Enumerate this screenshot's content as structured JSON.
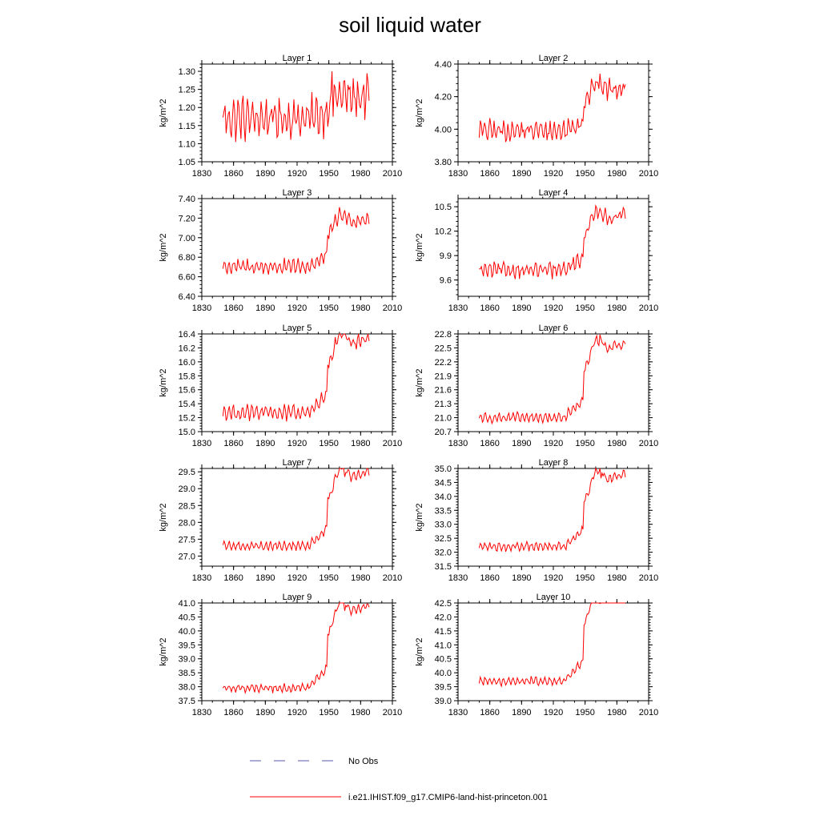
{
  "figure": {
    "title": "soil liquid water",
    "legend": [
      {
        "label": "No Obs",
        "color": "#5a5aa8",
        "style": "dashed"
      },
      {
        "label": "i.e21.IHIST.f09_g17.CMIP6-land-hist-princeton.001",
        "color": "#ff0000",
        "style": "solid"
      }
    ]
  },
  "chart_data": [
    {
      "type": "line",
      "title": "Layer 1",
      "ylabel": "kg/m^2",
      "xlim": [
        1830,
        2010
      ],
      "ylim": [
        1.05,
        1.32
      ],
      "xticks": [
        "1830",
        "1860",
        "1890",
        "1920",
        "1950",
        "1980",
        "2010"
      ],
      "yticks": [
        "1.05",
        "1.10",
        "1.15",
        "1.20",
        "1.25",
        "1.30"
      ],
      "ytick_values": [
        1.05,
        1.1,
        1.15,
        1.2,
        1.25,
        1.3
      ],
      "x_start": 1850,
      "x_end": 1988,
      "baseline": 1.17,
      "shift": 0.04,
      "amplitude": 0.05,
      "noise": 0.03,
      "highlight": [
        1953,
        1.3
      ],
      "series": [
        {
          "name": "i.e21.IHIST.f09_g17.CMIP6-land-hist-princeton.001",
          "color": "#ff0000"
        }
      ]
    },
    {
      "type": "line",
      "title": "Layer 2",
      "ylabel": "kg/m^2",
      "xlim": [
        1830,
        2010
      ],
      "ylim": [
        3.8,
        4.4
      ],
      "xticks": [
        "1830",
        "1860",
        "1890",
        "1920",
        "1950",
        "1980",
        "2010"
      ],
      "yticks": [
        "3.80",
        "4.00",
        "4.20",
        "4.40"
      ],
      "ytick_values": [
        3.8,
        4.0,
        4.2,
        4.4
      ],
      "x_start": 1850,
      "x_end": 1988,
      "baseline": 3.99,
      "shift": 0.18,
      "amplitude": 0.05,
      "noise": 0.04,
      "highlight": [
        1956,
        4.31
      ],
      "series": [
        {
          "name": "i.e21.IHIST.f09_g17.CMIP6-land-hist-princeton.001",
          "color": "#ff0000"
        }
      ]
    },
    {
      "type": "line",
      "title": "Layer 3",
      "ylabel": "kg/m^2",
      "xlim": [
        1830,
        2010
      ],
      "ylim": [
        6.4,
        7.4
      ],
      "xticks": [
        "1830",
        "1860",
        "1890",
        "1920",
        "1950",
        "1980",
        "2010"
      ],
      "yticks": [
        "6.40",
        "6.60",
        "6.80",
        "7.00",
        "7.20",
        "7.40"
      ],
      "ytick_values": [
        6.4,
        6.6,
        6.8,
        7.0,
        7.2,
        7.4
      ],
      "x_start": 1850,
      "x_end": 1988,
      "baseline": 6.7,
      "shift": 0.33,
      "amplitude": 0.07,
      "noise": 0.04,
      "highlight": [
        1956,
        7.24
      ],
      "series": [
        {
          "name": "i.e21.IHIST.f09_g17.CMIP6-land-hist-princeton.001",
          "color": "#ff0000"
        }
      ]
    },
    {
      "type": "line",
      "title": "Layer 4",
      "ylabel": "kg/m^2",
      "xlim": [
        1830,
        2010
      ],
      "ylim": [
        9.4,
        10.6
      ],
      "xticks": [
        "1830",
        "1860",
        "1890",
        "1920",
        "1950",
        "1980",
        "2010"
      ],
      "yticks": [
        "9.6",
        "9.9",
        "10.2",
        "10.5"
      ],
      "ytick_values": [
        9.6,
        9.9,
        10.2,
        10.5
      ],
      "x_start": 1850,
      "x_end": 1988,
      "baseline": 9.72,
      "shift": 0.45,
      "amplitude": 0.08,
      "noise": 0.05,
      "highlight": [
        1963,
        10.42
      ],
      "series": [
        {
          "name": "i.e21.IHIST.f09_g17.CMIP6-land-hist-princeton.001",
          "color": "#ff0000"
        }
      ]
    },
    {
      "type": "line",
      "title": "Layer 5",
      "ylabel": "kg/m^2",
      "xlim": [
        1830,
        2010
      ],
      "ylim": [
        15.0,
        16.4
      ],
      "xticks": [
        "1830",
        "1860",
        "1890",
        "1920",
        "1950",
        "1980",
        "2010"
      ],
      "yticks": [
        "15.0",
        "15.2",
        "15.4",
        "15.6",
        "15.8",
        "16.0",
        "16.2",
        "16.4"
      ],
      "ytick_values": [
        15.0,
        15.2,
        15.4,
        15.6,
        15.8,
        16.0,
        16.2,
        16.4
      ],
      "x_start": 1850,
      "x_end": 1988,
      "baseline": 15.27,
      "shift": 0.7,
      "amplitude": 0.1,
      "noise": 0.05,
      "highlight": [
        1963,
        16.38
      ],
      "series": [
        {
          "name": "i.e21.IHIST.f09_g17.CMIP6-land-hist-princeton.001",
          "color": "#ff0000"
        }
      ]
    },
    {
      "type": "line",
      "title": "Layer 6",
      "ylabel": "kg/m^2",
      "xlim": [
        1830,
        2010
      ],
      "ylim": [
        20.7,
        22.8
      ],
      "xticks": [
        "1830",
        "1860",
        "1890",
        "1920",
        "1950",
        "1980",
        "2010"
      ],
      "yticks": [
        "20.7",
        "21.0",
        "21.3",
        "21.6",
        "21.9",
        "22.2",
        "22.5",
        "22.8"
      ],
      "ytick_values": [
        20.7,
        21.0,
        21.3,
        21.6,
        21.9,
        22.2,
        22.5,
        22.8
      ],
      "x_start": 1850,
      "x_end": 1988,
      "baseline": 21.0,
      "shift": 1.05,
      "amplitude": 0.1,
      "noise": 0.05,
      "highlight": [
        1963,
        22.55
      ],
      "series": [
        {
          "name": "i.e21.IHIST.f09_g17.CMIP6-land-hist-princeton.001",
          "color": "#ff0000"
        }
      ]
    },
    {
      "type": "line",
      "title": "Layer 7",
      "ylabel": "kg/m^2",
      "xlim": [
        1830,
        2010
      ],
      "ylim": [
        26.7,
        29.6
      ],
      "xticks": [
        "1830",
        "1860",
        "1890",
        "1920",
        "1950",
        "1980",
        "2010"
      ],
      "yticks": [
        "27.0",
        "27.5",
        "28.0",
        "28.5",
        "29.0",
        "29.5"
      ],
      "ytick_values": [
        27.0,
        27.5,
        28.0,
        28.5,
        29.0,
        29.5
      ],
      "x_start": 1850,
      "x_end": 1988,
      "baseline": 27.3,
      "shift": 1.45,
      "amplitude": 0.13,
      "noise": 0.06,
      "highlight": [
        1965,
        29.35
      ],
      "series": [
        {
          "name": "i.e21.IHIST.f09_g17.CMIP6-land-hist-princeton.001",
          "color": "#ff0000"
        }
      ]
    },
    {
      "type": "line",
      "title": "Layer 8",
      "ylabel": "kg/m^2",
      "xlim": [
        1830,
        2010
      ],
      "ylim": [
        31.5,
        35.0
      ],
      "xticks": [
        "1830",
        "1860",
        "1890",
        "1920",
        "1950",
        "1980",
        "2010"
      ],
      "yticks": [
        "31.5",
        "32.0",
        "32.5",
        "33.0",
        "33.5",
        "34.0",
        "34.5",
        "35.0"
      ],
      "ytick_values": [
        31.5,
        32.0,
        32.5,
        33.0,
        33.5,
        34.0,
        34.5,
        35.0
      ],
      "x_start": 1850,
      "x_end": 1988,
      "baseline": 32.2,
      "shift": 1.7,
      "amplitude": 0.15,
      "noise": 0.07,
      "highlight": [
        1965,
        34.65
      ],
      "series": [
        {
          "name": "i.e21.IHIST.f09_g17.CMIP6-land-hist-princeton.001",
          "color": "#ff0000"
        }
      ]
    },
    {
      "type": "line",
      "title": "Layer 9",
      "ylabel": "kg/m^2",
      "xlim": [
        1830,
        2010
      ],
      "ylim": [
        37.5,
        41.0
      ],
      "xticks": [
        "1830",
        "1860",
        "1890",
        "1920",
        "1950",
        "1980",
        "2010"
      ],
      "yticks": [
        "37.5",
        "38.0",
        "38.5",
        "39.0",
        "39.5",
        "40.0",
        "40.5",
        "41.0"
      ],
      "ytick_values": [
        37.5,
        38.0,
        38.5,
        39.0,
        39.5,
        40.0,
        40.5,
        41.0
      ],
      "x_start": 1850,
      "x_end": 1988,
      "baseline": 37.95,
      "shift": 1.95,
      "amplitude": 0.15,
      "noise": 0.07,
      "highlight": [
        1965,
        40.72
      ],
      "series": [
        {
          "name": "i.e21.IHIST.f09_g17.CMIP6-land-hist-princeton.001",
          "color": "#ff0000"
        }
      ]
    },
    {
      "type": "line",
      "title": "Layer 10",
      "ylabel": "kg/m^2",
      "xlim": [
        1830,
        2010
      ],
      "ylim": [
        39.0,
        42.5
      ],
      "xticks": [
        "1830",
        "1860",
        "1890",
        "1920",
        "1950",
        "1980",
        "2010"
      ],
      "yticks": [
        "39.0",
        "39.5",
        "40.0",
        "40.5",
        "41.0",
        "41.5",
        "42.0",
        "42.5"
      ],
      "ytick_values": [
        39.0,
        39.5,
        40.0,
        40.5,
        41.0,
        41.5,
        42.0,
        42.5
      ],
      "x_start": 1850,
      "x_end": 1988,
      "baseline": 39.7,
      "shift": 2.1,
      "amplitude": 0.15,
      "noise": 0.07,
      "highlight": [
        1964,
        42.48
      ],
      "series": [
        {
          "name": "i.e21.IHIST.f09_g17.CMIP6-land-hist-princeton.001",
          "color": "#ff0000"
        }
      ]
    }
  ]
}
